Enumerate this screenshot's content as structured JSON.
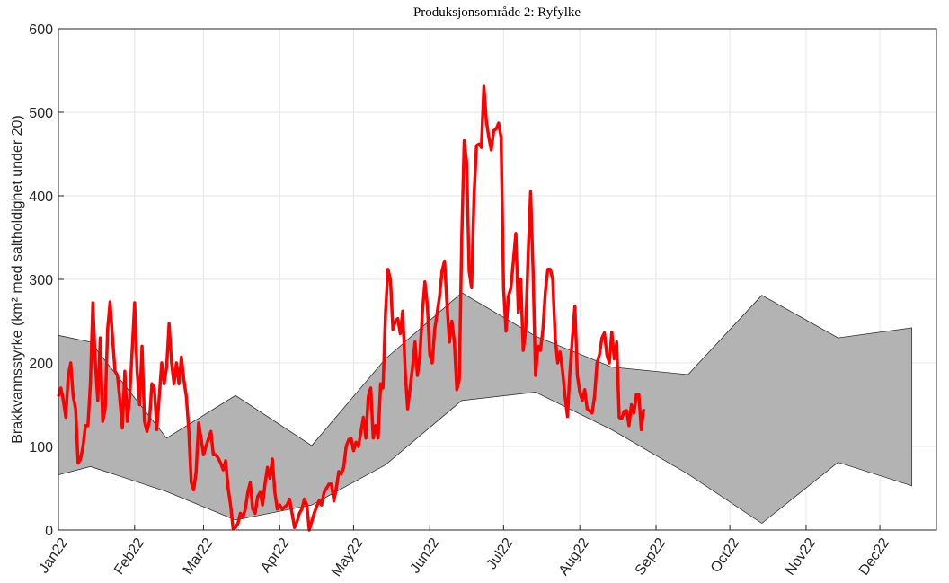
{
  "chart_data": {
    "type": "line",
    "title": "Produksjonsområde 2: Ryfylke",
    "y_label": "Brakkvannsstyrke (km² med saltholdighet under 20)",
    "xlim": [
      0,
      357
    ],
    "ylim": [
      0,
      600
    ],
    "yticks": [
      0,
      100,
      200,
      300,
      400,
      500,
      600
    ],
    "xticks": [
      {
        "value": 0,
        "label": "Jan22"
      },
      {
        "value": 31,
        "label": "Feb22"
      },
      {
        "value": 59,
        "label": "Mar22"
      },
      {
        "value": 90,
        "label": "Apr22"
      },
      {
        "value": 120,
        "label": "May22"
      },
      {
        "value": 151,
        "label": "Jun22"
      },
      {
        "value": 181,
        "label": "Jul22"
      },
      {
        "value": 212,
        "label": "Aug22"
      },
      {
        "value": 243,
        "label": "Sep22"
      },
      {
        "value": 273,
        "label": "Oct22"
      },
      {
        "value": 304,
        "label": "Nov22"
      },
      {
        "value": 334,
        "label": "Dec22"
      }
    ],
    "grid": true,
    "band": {
      "color": "#b3b3b3",
      "edge_color": "#333333",
      "x": [
        0,
        13,
        44,
        72,
        103,
        133,
        164,
        194,
        225,
        256,
        286,
        317,
        347
      ],
      "upper": [
        233,
        225,
        110,
        161,
        101,
        205,
        284,
        232,
        195,
        186,
        281,
        230,
        242
      ],
      "lower": [
        66,
        76,
        46,
        12,
        30,
        78,
        155,
        165,
        120,
        67,
        8,
        81,
        53
      ]
    },
    "series": [
      {
        "color": "#ff0000",
        "x": [
          0,
          1,
          2,
          3,
          4,
          5,
          6,
          7,
          8,
          9,
          10,
          11,
          12,
          13,
          14,
          15,
          16,
          17,
          18,
          19,
          20,
          21,
          22,
          23,
          24,
          25,
          26,
          27,
          28,
          29,
          31,
          32,
          33,
          34,
          35,
          36,
          37,
          38,
          39,
          40,
          41,
          42,
          43,
          44,
          45,
          46,
          47,
          48,
          49,
          50,
          51,
          52,
          53,
          54,
          55,
          56,
          57,
          58,
          59,
          60,
          62,
          63,
          64,
          65,
          66,
          67,
          68,
          69,
          70,
          71,
          72,
          73,
          74,
          75,
          76,
          77,
          78,
          79,
          80,
          81,
          82,
          83,
          84,
          85,
          86,
          87,
          88,
          89,
          90,
          91,
          93,
          94,
          95,
          96,
          97,
          98,
          99,
          100,
          101,
          102,
          103,
          104,
          105,
          106,
          107,
          108,
          109,
          110,
          111,
          112,
          113,
          114,
          115,
          116,
          117,
          118,
          119,
          120,
          121,
          122,
          124,
          125,
          126,
          127,
          128,
          129,
          130,
          131,
          132,
          133,
          134,
          135,
          136,
          137,
          138,
          139,
          140,
          141,
          142,
          143,
          144,
          145,
          146,
          147,
          148,
          149,
          150,
          151,
          152,
          153,
          155,
          156,
          157,
          158,
          159,
          160,
          161,
          162,
          163,
          164,
          165,
          166,
          167,
          168,
          169,
          170,
          171,
          172,
          173,
          174,
          175,
          176,
          177,
          178,
          179,
          180,
          181,
          182,
          183,
          184,
          186,
          187,
          188,
          189,
          190,
          191,
          192,
          193,
          194,
          195,
          196,
          197,
          198,
          199,
          200,
          201,
          202,
          203,
          204,
          205,
          206,
          207,
          208,
          209,
          210,
          211,
          212,
          213,
          214,
          215,
          217,
          218,
          219,
          220,
          221,
          222,
          223,
          224,
          225,
          226,
          227,
          228,
          229,
          230,
          231,
          232,
          233,
          234,
          235,
          236,
          237,
          238
        ],
        "values": [
          160,
          170,
          155,
          135,
          185,
          200,
          160,
          145,
          80,
          85,
          100,
          125,
          125,
          175,
          272,
          200,
          155,
          230,
          130,
          145,
          240,
          273,
          230,
          190,
          185,
          155,
          122,
          190,
          130,
          160,
          272,
          190,
          150,
          220,
          130,
          118,
          130,
          175,
          170,
          120,
          160,
          200,
          175,
          195,
          247,
          200,
          175,
          200,
          175,
          207,
          180,
          160,
          120,
          57,
          48,
          70,
          128,
          110,
          90,
          100,
          118,
          90,
          90,
          86,
          80,
          72,
          83,
          50,
          30,
          2,
          3,
          8,
          20,
          15,
          25,
          45,
          57,
          25,
          20,
          40,
          45,
          30,
          55,
          75,
          62,
          85,
          45,
          25,
          30,
          25,
          30,
          37,
          20,
          3,
          10,
          20,
          25,
          37,
          30,
          0,
          10,
          20,
          28,
          35,
          30,
          45,
          50,
          55,
          55,
          35,
          50,
          70,
          67,
          75,
          100,
          108,
          110,
          95,
          105,
          100,
          135,
          110,
          160,
          170,
          110,
          125,
          110,
          175,
          170,
          260,
          312,
          300,
          240,
          250,
          253,
          235,
          262,
          190,
          145,
          170,
          195,
          225,
          185,
          210,
          260,
          297,
          270,
          210,
          200,
          240,
          280,
          310,
          322,
          270,
          225,
          250,
          225,
          168,
          180,
          350,
          466,
          440,
          310,
          290,
          400,
          460,
          462,
          458,
          531,
          490,
          470,
          455,
          478,
          480,
          487,
          470,
          290,
          238,
          280,
          290,
          355,
          260,
          300,
          215,
          240,
          330,
          405,
          310,
          185,
          220,
          215,
          240,
          285,
          312,
          312,
          300,
          230,
          200,
          213,
          190,
          160,
          136,
          190,
          230,
          268,
          185,
          165,
          155,
          168,
          145,
          140,
          160,
          200,
          210,
          230,
          236,
          210,
          200,
          237,
          205,
          225,
          135,
          133,
          142,
          143,
          125,
          150,
          140,
          162,
          162,
          120,
          145
        ]
      }
    ]
  }
}
